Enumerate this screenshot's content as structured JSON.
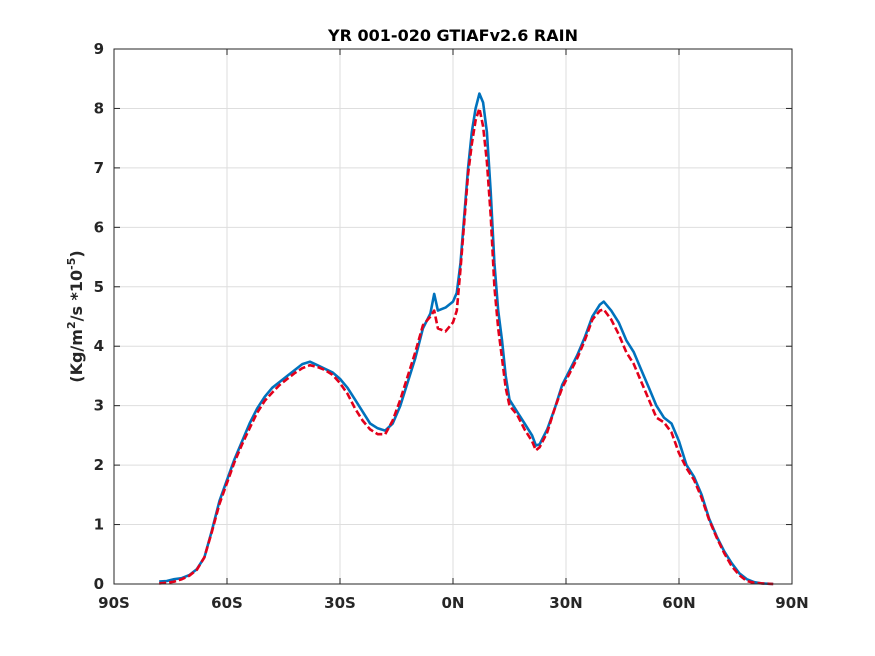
{
  "chart_data": {
    "type": "line",
    "title": "YR 001-020 GTIAFv2.6 RAIN",
    "xlabel": "",
    "ylabel": {
      "main": "(Kg/m",
      "sup1": "2",
      "mid": "/s   *10",
      "sup2": "-5",
      "end": ")"
    },
    "xlim": [
      -90,
      90
    ],
    "ylim": [
      0,
      9
    ],
    "grid": true,
    "legend": "none",
    "x_ticks": [
      {
        "value": -90,
        "label": "90S"
      },
      {
        "value": -60,
        "label": "60S"
      },
      {
        "value": -30,
        "label": "30S"
      },
      {
        "value": 0,
        "label": "0N"
      },
      {
        "value": 30,
        "label": "30N"
      },
      {
        "value": 60,
        "label": "60N"
      },
      {
        "value": 90,
        "label": "90N"
      }
    ],
    "y_ticks": [
      {
        "value": 0,
        "label": "0"
      },
      {
        "value": 1,
        "label": "1"
      },
      {
        "value": 2,
        "label": "2"
      },
      {
        "value": 3,
        "label": "3"
      },
      {
        "value": 4,
        "label": "4"
      },
      {
        "value": 5,
        "label": "5"
      },
      {
        "value": 6,
        "label": "6"
      },
      {
        "value": 7,
        "label": "7"
      },
      {
        "value": 8,
        "label": "8"
      },
      {
        "value": 9,
        "label": "9"
      }
    ],
    "series": [
      {
        "color": "#0072BD",
        "dash": "solid",
        "points": [
          [
            -78,
            0.04
          ],
          [
            -76,
            0.05
          ],
          [
            -74,
            0.08
          ],
          [
            -72,
            0.1
          ],
          [
            -70,
            0.15
          ],
          [
            -68,
            0.25
          ],
          [
            -66,
            0.45
          ],
          [
            -64,
            0.9
          ],
          [
            -62,
            1.4
          ],
          [
            -60,
            1.75
          ],
          [
            -58,
            2.1
          ],
          [
            -56,
            2.4
          ],
          [
            -54,
            2.7
          ],
          [
            -52,
            2.95
          ],
          [
            -50,
            3.15
          ],
          [
            -48,
            3.3
          ],
          [
            -46,
            3.4
          ],
          [
            -44,
            3.5
          ],
          [
            -42,
            3.6
          ],
          [
            -40,
            3.7
          ],
          [
            -38,
            3.74
          ],
          [
            -36,
            3.68
          ],
          [
            -34,
            3.62
          ],
          [
            -32,
            3.56
          ],
          [
            -30,
            3.45
          ],
          [
            -28,
            3.3
          ],
          [
            -26,
            3.1
          ],
          [
            -24,
            2.9
          ],
          [
            -22,
            2.7
          ],
          [
            -20,
            2.62
          ],
          [
            -18,
            2.58
          ],
          [
            -16,
            2.7
          ],
          [
            -14,
            3.0
          ],
          [
            -12,
            3.4
          ],
          [
            -10,
            3.8
          ],
          [
            -8,
            4.3
          ],
          [
            -6,
            4.55
          ],
          [
            -5,
            4.88
          ],
          [
            -4,
            4.6
          ],
          [
            -2,
            4.65
          ],
          [
            0,
            4.75
          ],
          [
            1,
            4.9
          ],
          [
            2,
            5.4
          ],
          [
            3,
            6.2
          ],
          [
            4,
            7.0
          ],
          [
            5,
            7.6
          ],
          [
            6,
            8.0
          ],
          [
            7,
            8.25
          ],
          [
            8,
            8.1
          ],
          [
            9,
            7.6
          ],
          [
            10,
            6.6
          ],
          [
            11,
            5.4
          ],
          [
            12,
            4.6
          ],
          [
            13,
            4.1
          ],
          [
            14,
            3.5
          ],
          [
            15,
            3.1
          ],
          [
            17,
            2.9
          ],
          [
            19,
            2.7
          ],
          [
            21,
            2.5
          ],
          [
            22,
            2.33
          ],
          [
            23,
            2.35
          ],
          [
            25,
            2.6
          ],
          [
            27,
            2.95
          ],
          [
            29,
            3.35
          ],
          [
            31,
            3.6
          ],
          [
            33,
            3.85
          ],
          [
            35,
            4.15
          ],
          [
            37,
            4.5
          ],
          [
            39,
            4.7
          ],
          [
            40,
            4.75
          ],
          [
            42,
            4.6
          ],
          [
            44,
            4.4
          ],
          [
            46,
            4.1
          ],
          [
            48,
            3.9
          ],
          [
            50,
            3.6
          ],
          [
            52,
            3.3
          ],
          [
            54,
            3.0
          ],
          [
            56,
            2.8
          ],
          [
            58,
            2.7
          ],
          [
            60,
            2.4
          ],
          [
            62,
            2.0
          ],
          [
            64,
            1.8
          ],
          [
            66,
            1.5
          ],
          [
            68,
            1.1
          ],
          [
            70,
            0.8
          ],
          [
            72,
            0.55
          ],
          [
            74,
            0.35
          ],
          [
            76,
            0.18
          ],
          [
            78,
            0.08
          ],
          [
            80,
            0.03
          ],
          [
            82,
            0.01
          ],
          [
            85,
            0.0
          ]
        ]
      },
      {
        "color": "#E3001B",
        "dash": "dashed",
        "points": [
          [
            -78,
            0.01
          ],
          [
            -76,
            0.02
          ],
          [
            -74,
            0.04
          ],
          [
            -72,
            0.08
          ],
          [
            -70,
            0.14
          ],
          [
            -68,
            0.24
          ],
          [
            -66,
            0.45
          ],
          [
            -64,
            0.88
          ],
          [
            -62,
            1.35
          ],
          [
            -60,
            1.7
          ],
          [
            -58,
            2.05
          ],
          [
            -56,
            2.35
          ],
          [
            -54,
            2.62
          ],
          [
            -52,
            2.88
          ],
          [
            -50,
            3.08
          ],
          [
            -48,
            3.22
          ],
          [
            -46,
            3.35
          ],
          [
            -44,
            3.45
          ],
          [
            -42,
            3.55
          ],
          [
            -40,
            3.63
          ],
          [
            -38,
            3.68
          ],
          [
            -36,
            3.65
          ],
          [
            -34,
            3.6
          ],
          [
            -32,
            3.52
          ],
          [
            -30,
            3.38
          ],
          [
            -28,
            3.2
          ],
          [
            -26,
            2.95
          ],
          [
            -24,
            2.75
          ],
          [
            -22,
            2.6
          ],
          [
            -20,
            2.52
          ],
          [
            -18,
            2.52
          ],
          [
            -16,
            2.75
          ],
          [
            -14,
            3.1
          ],
          [
            -12,
            3.5
          ],
          [
            -10,
            3.9
          ],
          [
            -8,
            4.35
          ],
          [
            -6,
            4.5
          ],
          [
            -5,
            4.6
          ],
          [
            -4,
            4.3
          ],
          [
            -2,
            4.25
          ],
          [
            0,
            4.4
          ],
          [
            1,
            4.6
          ],
          [
            2,
            5.3
          ],
          [
            3,
            6.1
          ],
          [
            4,
            6.9
          ],
          [
            5,
            7.4
          ],
          [
            6,
            7.8
          ],
          [
            7,
            8.0
          ],
          [
            8,
            7.7
          ],
          [
            9,
            7.1
          ],
          [
            10,
            6.2
          ],
          [
            11,
            5.0
          ],
          [
            12,
            4.3
          ],
          [
            13,
            3.8
          ],
          [
            14,
            3.3
          ],
          [
            15,
            3.0
          ],
          [
            17,
            2.85
          ],
          [
            19,
            2.6
          ],
          [
            21,
            2.4
          ],
          [
            22,
            2.25
          ],
          [
            23,
            2.3
          ],
          [
            25,
            2.55
          ],
          [
            27,
            2.95
          ],
          [
            29,
            3.3
          ],
          [
            31,
            3.55
          ],
          [
            33,
            3.8
          ],
          [
            35,
            4.1
          ],
          [
            37,
            4.45
          ],
          [
            39,
            4.6
          ],
          [
            40,
            4.62
          ],
          [
            42,
            4.45
          ],
          [
            44,
            4.2
          ],
          [
            46,
            3.9
          ],
          [
            48,
            3.7
          ],
          [
            50,
            3.4
          ],
          [
            52,
            3.1
          ],
          [
            54,
            2.8
          ],
          [
            56,
            2.72
          ],
          [
            58,
            2.55
          ],
          [
            60,
            2.2
          ],
          [
            62,
            1.95
          ],
          [
            64,
            1.75
          ],
          [
            66,
            1.45
          ],
          [
            68,
            1.08
          ],
          [
            70,
            0.78
          ],
          [
            72,
            0.52
          ],
          [
            74,
            0.3
          ],
          [
            76,
            0.15
          ],
          [
            78,
            0.05
          ],
          [
            80,
            0.02
          ],
          [
            82,
            0.01
          ],
          [
            85,
            0.0
          ]
        ]
      }
    ]
  }
}
